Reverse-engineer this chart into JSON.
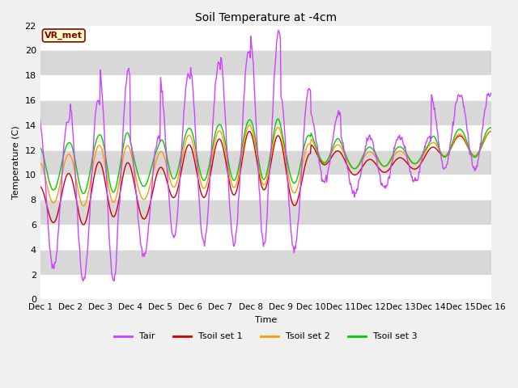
{
  "title": "Soil Temperature at -4cm",
  "xlabel": "Time",
  "ylabel": "Temperature (C)",
  "ylim": [
    0,
    22
  ],
  "annotation": "VR_met",
  "legend_labels": [
    "Tair",
    "Tsoil set 1",
    "Tsoil set 2",
    "Tsoil set 3"
  ],
  "line_colors": [
    "#CC44FF",
    "#CC0000",
    "#FF9900",
    "#00CC00"
  ],
  "background_color": "#DCDCDC",
  "xtick_labels": [
    "Dec 1",
    "Dec 2",
    "Dec 3",
    "Dec 4",
    "Dec 5",
    "Dec 6",
    "Dec 7",
    "Dec 8",
    "Dec 9",
    "Dec 10",
    "Dec 11",
    "Dec 12",
    "Dec 13",
    "Dec 14",
    "Dec 15",
    "Dec 16"
  ],
  "ytick_positions": [
    0,
    2,
    4,
    6,
    8,
    10,
    12,
    14,
    16,
    18,
    20,
    22
  ],
  "ytick_labels": [
    "0",
    "2",
    "4",
    "6",
    "8",
    "10",
    "12",
    "14",
    "16",
    "18",
    "20",
    "22"
  ]
}
